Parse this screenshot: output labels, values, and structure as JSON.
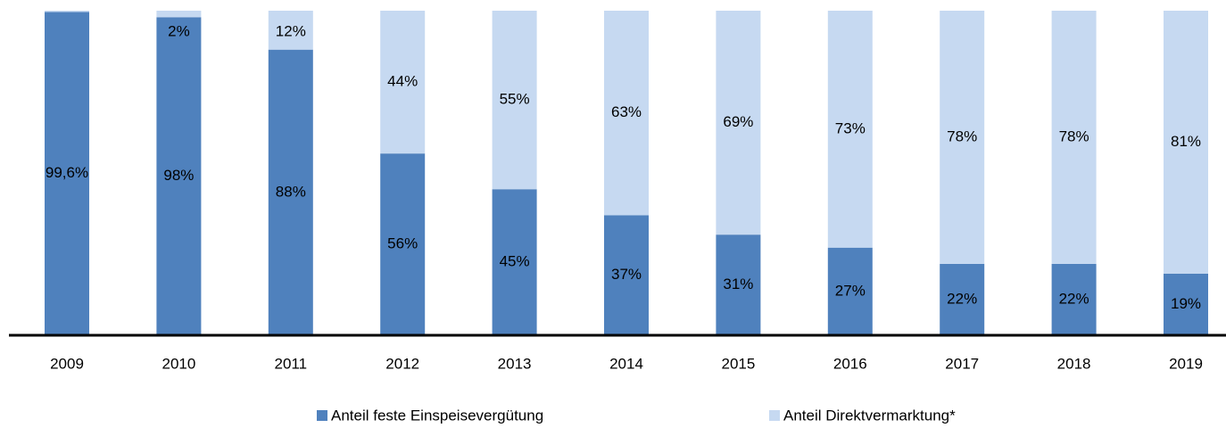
{
  "chart_data": {
    "type": "stacked-bar",
    "categories": [
      "2009",
      "2010",
      "2011",
      "2012",
      "2013",
      "2014",
      "2015",
      "2016",
      "2017",
      "2018",
      "2019"
    ],
    "series": [
      {
        "name": "Anteil feste Einspeisevergütung",
        "color": "#4f81bd",
        "values": [
          99.6,
          98,
          88,
          56,
          45,
          37,
          31,
          27,
          22,
          22,
          19
        ],
        "value_labels": [
          "99,6%",
          "98%",
          "88%",
          "56%",
          "45%",
          "37%",
          "31%",
          "27%",
          "22%",
          "22%",
          "19%"
        ]
      },
      {
        "name": "Anteil Direktvermarktung*",
        "color": "#c6d9f1",
        "values": [
          0.4,
          2,
          12,
          44,
          55,
          63,
          69,
          73,
          78,
          78,
          81
        ],
        "value_labels": [
          null,
          "2%",
          "12%",
          "44%",
          "55%",
          "63%",
          "69%",
          "73%",
          "78%",
          "78%",
          "81%"
        ]
      }
    ],
    "ylim": [
      0,
      100
    ],
    "legend": "bottom"
  }
}
